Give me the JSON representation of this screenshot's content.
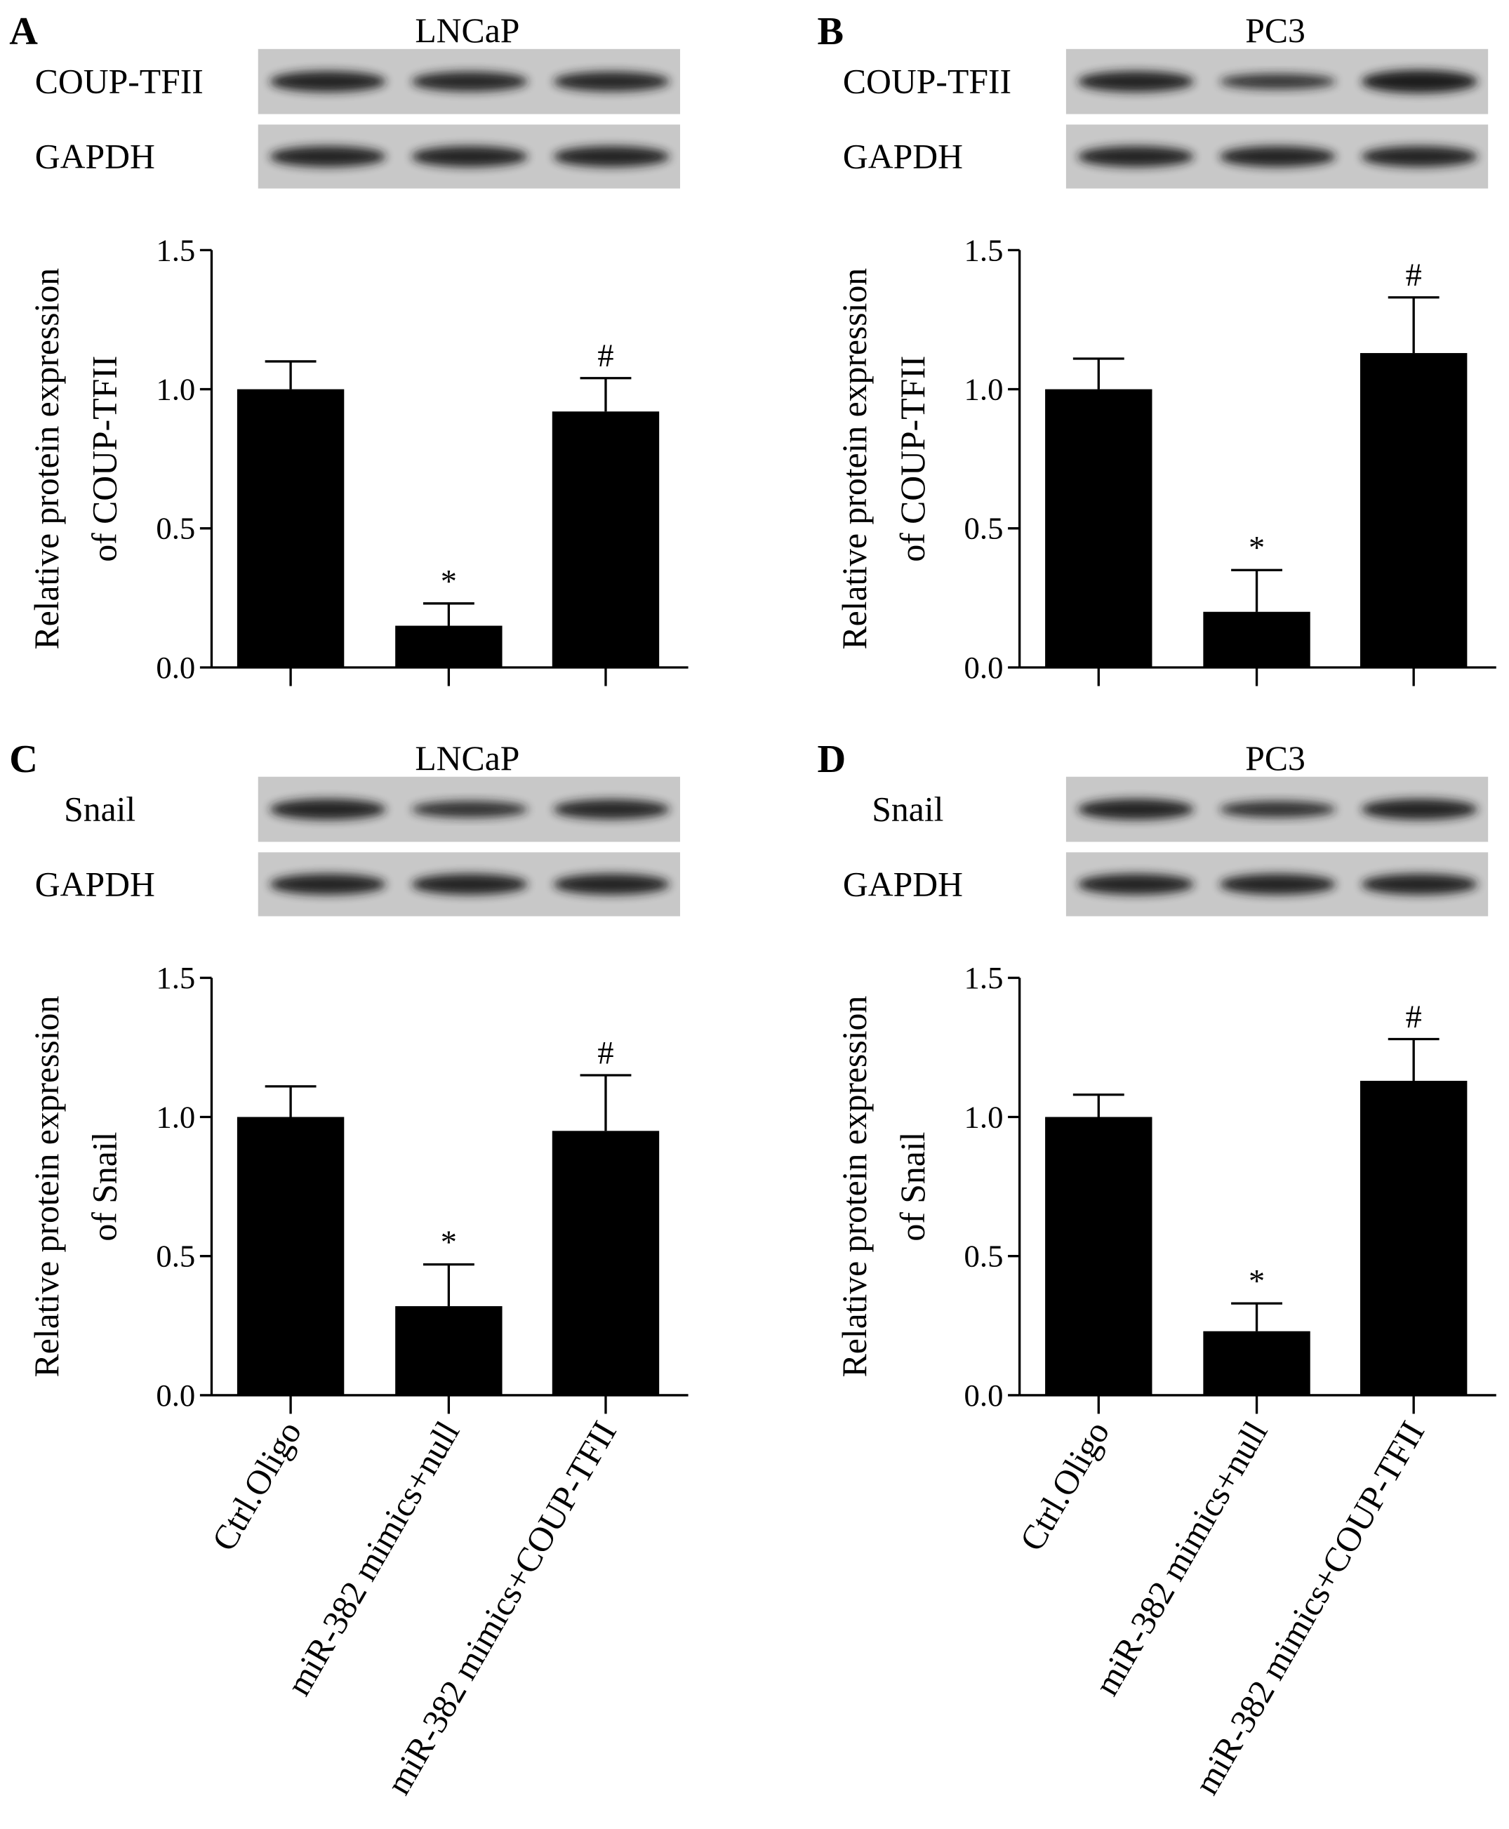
{
  "chart_data": [
    {
      "type": "bar",
      "panel_label": "A",
      "title": "LNCaP",
      "blot_labels": [
        "COUP-TFII",
        "GAPDH"
      ],
      "ylabel": [
        "Relative protein expression",
        "of COUP-TFII"
      ],
      "categories": [
        null,
        null,
        null
      ],
      "values": [
        1.0,
        0.15,
        0.92
      ],
      "errors": [
        0.1,
        0.08,
        0.12
      ],
      "markers": [
        null,
        "*",
        "#"
      ],
      "color": "#000000",
      "ylim": [
        0,
        1.5
      ],
      "yticks": [
        {
          "value": 0,
          "label": "0.0"
        },
        0.5,
        {
          "value": 1,
          "label": "1.0"
        },
        1.5
      ]
    },
    {
      "type": "bar",
      "panel_label": "B",
      "title": "PC3",
      "blot_labels": [
        "COUP-TFII",
        "GAPDH"
      ],
      "ylabel": [
        "Relative protein expression",
        "of COUP-TFII"
      ],
      "categories": [
        null,
        null,
        null
      ],
      "values": [
        1.0,
        0.2,
        1.13
      ],
      "errors": [
        0.11,
        0.15,
        0.2
      ],
      "markers": [
        null,
        "*",
        "#"
      ],
      "color": "#000000",
      "ylim": [
        0,
        1.5
      ],
      "yticks": [
        {
          "value": 0,
          "label": "0.0"
        },
        0.5,
        {
          "value": 1,
          "label": "1.0"
        },
        1.5
      ]
    },
    {
      "type": "bar",
      "panel_label": "C",
      "title": "LNCaP",
      "blot_labels": [
        "Snail",
        "GAPDH"
      ],
      "ylabel": [
        "Relative protein expression",
        "of Snail"
      ],
      "categories": [
        "Ctrl.Oligo",
        "miR-382 mimics+null",
        "miR-382 mimics+COUP-TFII"
      ],
      "values": [
        1.0,
        0.32,
        0.95
      ],
      "errors": [
        0.11,
        0.15,
        0.2
      ],
      "markers": [
        null,
        "*",
        "#"
      ],
      "color": "#000000",
      "ylim": [
        0,
        1.5
      ],
      "yticks": [
        {
          "value": 0,
          "label": "0.0"
        },
        0.5,
        {
          "value": 1,
          "label": "1.0"
        },
        1.5
      ]
    },
    {
      "type": "bar",
      "panel_label": "D",
      "title": "PC3",
      "blot_labels": [
        "Snail",
        "GAPDH"
      ],
      "ylabel": [
        "Relative protein expression",
        "of Snail"
      ],
      "categories": [
        "Ctrl.Oligo",
        "miR-382 mimics+null",
        "miR-382 mimics+COUP-TFII"
      ],
      "values": [
        1.0,
        0.23,
        1.13
      ],
      "errors": [
        0.08,
        0.1,
        0.15
      ],
      "markers": [
        null,
        "*",
        "#"
      ],
      "color": "#000000",
      "ylim": [
        0,
        1.5
      ],
      "yticks": [
        {
          "value": 0,
          "label": "0.0"
        },
        0.5,
        {
          "value": 1,
          "label": "1.0"
        },
        1.5
      ]
    }
  ]
}
